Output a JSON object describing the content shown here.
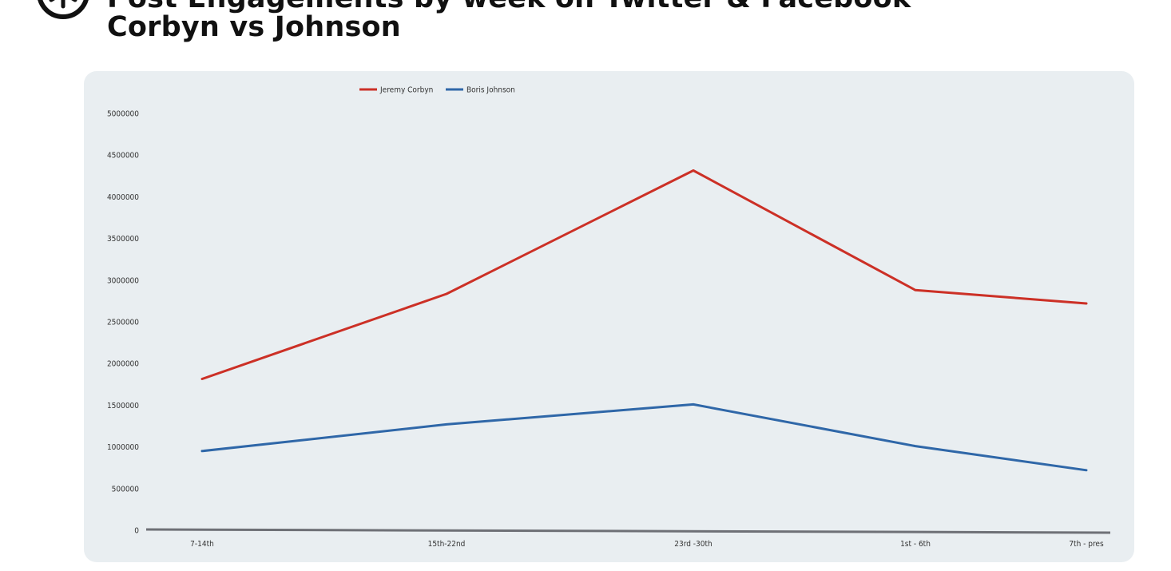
{
  "header": {
    "title_line1": "Post Engagements by week on Twitter & Facebook",
    "title_line2": "Corbyn vs Johnson",
    "logo_icon": "asterisk-logo-icon"
  },
  "colors": {
    "corbyn": "#cc3026",
    "johnson": "#2f67a8",
    "baseline": "#6e7076",
    "panel": "#e9eef1"
  },
  "chart_data": {
    "type": "line",
    "categories": [
      "7-14th",
      "15th-22nd",
      "23rd -30th",
      "1st - 6th",
      "7th - pres"
    ],
    "series": [
      {
        "name": "Jeremy Corbyn",
        "values": [
          1815000,
          2835000,
          4315000,
          2880000,
          2720000
        ]
      },
      {
        "name": "Boris Johnson",
        "values": [
          950000,
          1270000,
          1510000,
          1010000,
          720000
        ]
      }
    ],
    "yticks": [
      "5000000",
      "4500000",
      "4000000",
      "3500000",
      "3000000",
      "2500000",
      "2000000",
      "1500000",
      "1000000",
      "500000",
      "0"
    ],
    "ylim": [
      0,
      5000000
    ],
    "legend_position": "top",
    "grid": false
  }
}
